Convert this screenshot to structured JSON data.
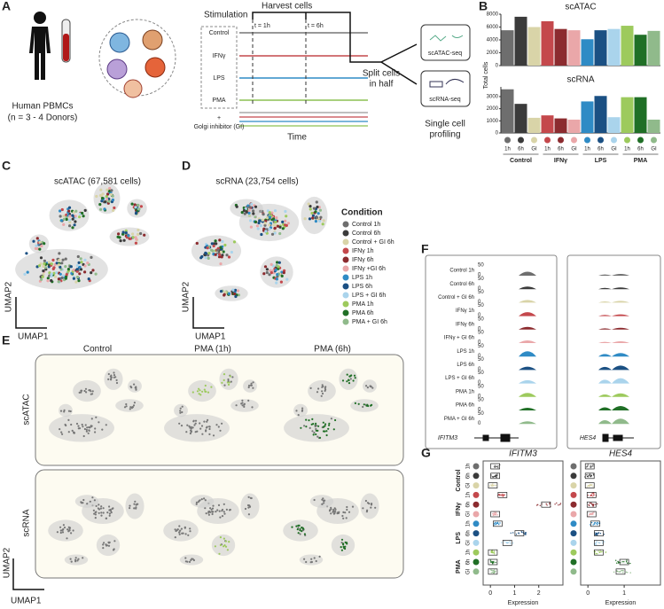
{
  "panels": [
    "A",
    "B",
    "C",
    "D",
    "E",
    "F",
    "G"
  ],
  "design": {
    "source": "Human PBMCs",
    "donors": "(n = 3 - 4 Donors)",
    "stimulation": "Stimulation",
    "harvest": "Harvest cells",
    "t1": "t = 1h",
    "t6": "t = 6h",
    "conditions": [
      "Control",
      "IFNγ",
      "LPS",
      "PMA"
    ],
    "plus": "+",
    "gi": "Golgi inhibitor (GI)",
    "time": "Time",
    "split": [
      "Split cells",
      "in half"
    ],
    "assays": [
      "scATAC-seq",
      "scRNA-seq"
    ],
    "profiling": [
      "Single cell",
      "profiling"
    ]
  },
  "chart_data": [
    {
      "type": "bar",
      "title": "scATAC",
      "ylabel": "Total cells",
      "categories": [
        "1h",
        "6h",
        "GI",
        "1h",
        "6h",
        "GI",
        "1h",
        "6h",
        "GI",
        "1h",
        "6h",
        "GI"
      ],
      "values": [
        5500,
        7600,
        6000,
        6900,
        5700,
        5500,
        4100,
        5500,
        5700,
        6200,
        4800,
        5400
      ],
      "colors": [
        "#6e6e6e",
        "#3b3b3b",
        "#d9d4a8",
        "#c4484c",
        "#8c2b2f",
        "#eaa7a9",
        "#2f8bc5",
        "#1b5083",
        "#aad4ec",
        "#9dca5d",
        "#206f26",
        "#90ba8b"
      ],
      "ylim": [
        0,
        8000
      ],
      "yticks": [
        0,
        2000,
        4000,
        6000,
        8000
      ]
    },
    {
      "type": "bar",
      "title": "scRNA",
      "ylabel": "Total cells",
      "categories": [
        "1h",
        "6h",
        "GI",
        "1h",
        "6h",
        "GI",
        "1h",
        "6h",
        "GI",
        "1h",
        "6h",
        "GI"
      ],
      "values": [
        3600,
        2400,
        1250,
        1450,
        1200,
        1100,
        2600,
        3050,
        1300,
        2950,
        2950,
        1100
      ],
      "colors": [
        "#6e6e6e",
        "#3b3b3b",
        "#d9d4a8",
        "#c4484c",
        "#8c2b2f",
        "#eaa7a9",
        "#2f8bc5",
        "#1b5083",
        "#aad4ec",
        "#9dca5d",
        "#206f26",
        "#90ba8b"
      ],
      "ylim": [
        0,
        3800
      ],
      "yticks": [
        0,
        1000,
        2000,
        3000
      ]
    }
  ],
  "groups": {
    "names": [
      "Control",
      "IFNγ",
      "LPS",
      "PMA"
    ],
    "colors": [
      "#555555",
      "#c4484c",
      "#2f8bc5",
      "#8cc152"
    ]
  },
  "umap": {
    "c_title": "scATAC (67,581 cells)",
    "d_title": "scRNA (23,754 cells)",
    "x": "UMAP1",
    "y": "UMAP2"
  },
  "legend": {
    "title": "Condition",
    "items": [
      "Control 1h",
      "Control 6h",
      "Control + GI 6h",
      "IFNγ 1h",
      "IFNγ 6h",
      "IFNγ +GI 6h",
      "LPS 1h",
      "LPS 6h",
      "LPS + GI 6h",
      "PMA 1h",
      "PMA 6h",
      "PMA + GI 6h"
    ]
  },
  "e": {
    "columns": [
      "Control",
      "PMA (1h)",
      "PMA (6h)"
    ],
    "rows": [
      "scATAC",
      "scRNA"
    ],
    "x": "UMAP1",
    "y": "UMAP2"
  },
  "f": {
    "labels": [
      "Control 1h",
      "Control 6h",
      "Control + GI 6h",
      "IFNγ 1h",
      "IFNγ 6h",
      "IFNγ + GI 6h",
      "LPS 1h",
      "LPS 6h",
      "LPS + GI 6h",
      "PMA 1h",
      "PMA 6h",
      "PMA + GI 6h"
    ],
    "scale_max": "50",
    "scale_min": "0",
    "genes": [
      "IFITM3",
      "HES4"
    ]
  },
  "g": {
    "genes": [
      "IFITM3",
      "HES4"
    ],
    "xlabel": "Expression",
    "xticks": [
      [
        0,
        1,
        2
      ],
      [
        0,
        1
      ]
    ],
    "xlim": [
      [
        -0.3,
        3.0
      ],
      [
        -0.2,
        2.0
      ]
    ]
  }
}
